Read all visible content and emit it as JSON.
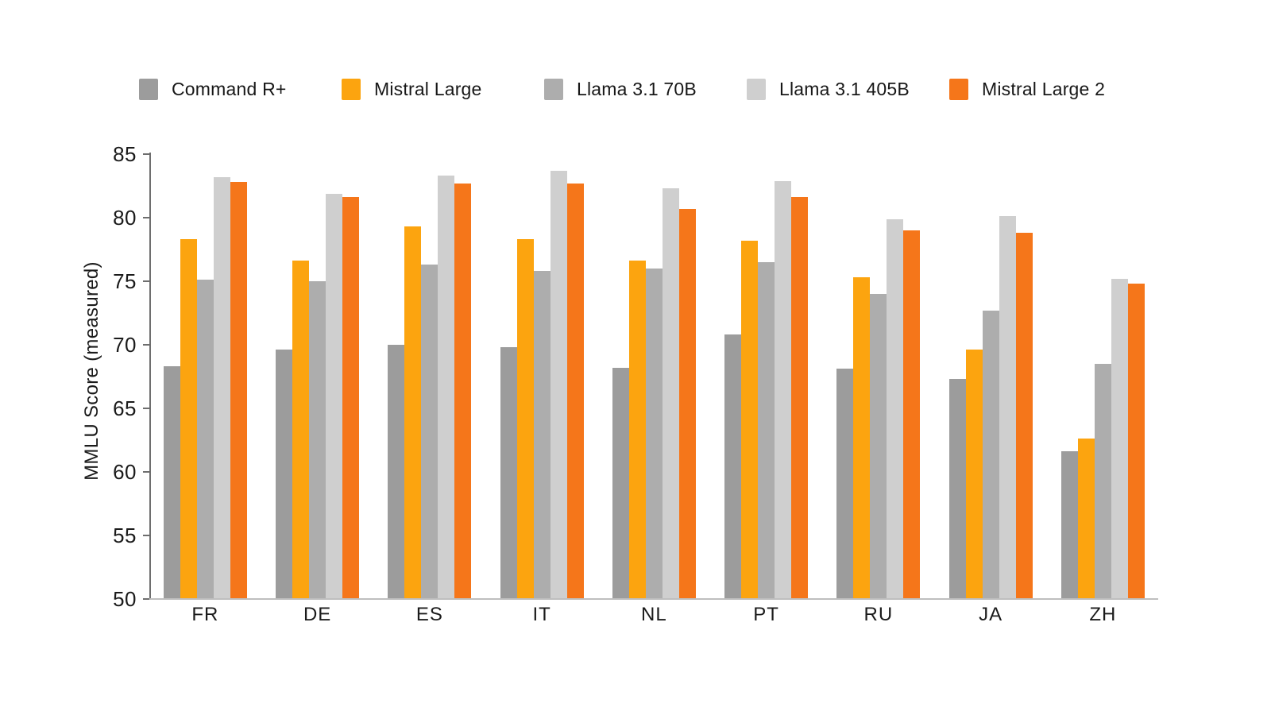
{
  "chart_data": {
    "type": "bar",
    "title": "",
    "xlabel": "",
    "ylabel": "MMLU Score (measured)",
    "ylim": [
      50,
      85
    ],
    "yticks": [
      50,
      55,
      60,
      65,
      70,
      75,
      80,
      85
    ],
    "grid": false,
    "legend_position": "top",
    "categories": [
      "FR",
      "DE",
      "ES",
      "IT",
      "NL",
      "PT",
      "RU",
      "JA",
      "ZH"
    ],
    "series": [
      {
        "name": "Command R+",
        "color": "#9C9C9C",
        "values": [
          68.3,
          69.6,
          70.0,
          69.8,
          68.2,
          70.8,
          68.1,
          67.3,
          61.6
        ]
      },
      {
        "name": "Mistral Large",
        "color": "#FCA40F",
        "values": [
          78.3,
          76.6,
          79.3,
          78.3,
          76.6,
          78.2,
          75.3,
          69.6,
          62.6
        ]
      },
      {
        "name": "Llama 3.1 70B",
        "color": "#ADADAD",
        "values": [
          75.1,
          75.0,
          76.3,
          75.8,
          76.0,
          76.5,
          74.0,
          72.7,
          68.5
        ]
      },
      {
        "name": "Llama 3.1 405B",
        "color": "#CFCFCF",
        "values": [
          83.2,
          81.9,
          83.3,
          83.7,
          82.3,
          82.9,
          79.9,
          80.1,
          75.2
        ]
      },
      {
        "name": "Mistral Large 2",
        "color": "#F5761A",
        "values": [
          82.8,
          81.6,
          82.7,
          82.7,
          80.7,
          81.6,
          79.0,
          78.8,
          74.8
        ]
      }
    ]
  },
  "colors": {
    "background": "#FFFFFF",
    "axis_line": "#6E6E6E",
    "baseline": "#BFBFBF",
    "text": "#1B1B1B"
  }
}
